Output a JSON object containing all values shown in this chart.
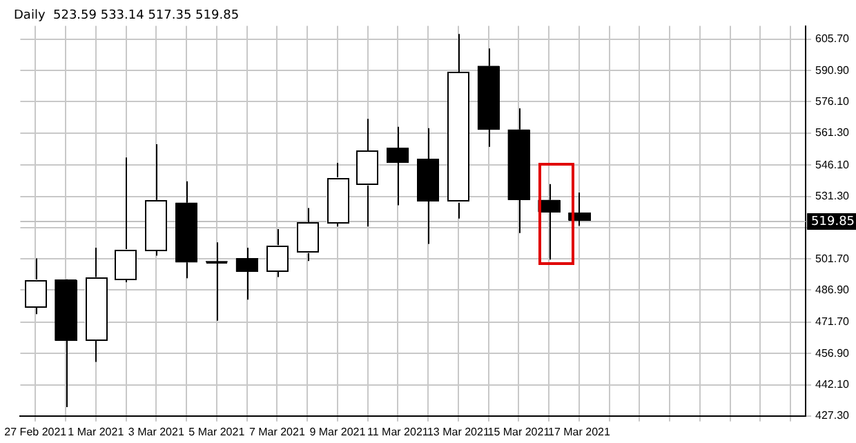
{
  "chart_data": {
    "type": "candlestick",
    "title": "Daily  523.59 533.14 517.35 519.85",
    "categories": [
      "27 Feb 2021",
      null,
      "1 Mar 2021",
      null,
      "3 Mar 2021",
      null,
      "5 Mar 2021",
      null,
      "7 Mar 2021",
      null,
      "9 Mar 2021",
      null,
      "11 Mar 2021",
      null,
      "13 Mar 2021",
      null,
      "15 Mar 2021",
      null,
      "17 Mar 2021",
      null,
      null,
      null,
      null,
      null,
      null,
      null
    ],
    "ohlc": [
      [
        478.7,
        501.9,
        475.5,
        491.9
      ],
      [
        491.9,
        492.0,
        431.5,
        462.9
      ],
      [
        462.9,
        507.0,
        452.9,
        493.1
      ],
      [
        491.9,
        549.7,
        490.6,
        506.3
      ],
      [
        505.7,
        556.0,
        503.2,
        529.6
      ],
      [
        528.3,
        538.4,
        492.5,
        500.0
      ],
      [
        500.0,
        509.5,
        472.4,
        500.0
      ],
      [
        501.9,
        507.0,
        482.4,
        495.6
      ],
      [
        495.6,
        515.8,
        493.1,
        508.2
      ],
      [
        504.4,
        525.8,
        500.7,
        518.9
      ],
      [
        518.9,
        547.2,
        517.0,
        540.3
      ],
      [
        536.5,
        568.0,
        517.0,
        552.9
      ],
      [
        554.1,
        564.2,
        527.1,
        547.2
      ],
      [
        549.1,
        563.6,
        508.8,
        529.0
      ],
      [
        528.3,
        608.2,
        520.8,
        590.0
      ],
      [
        593.1,
        601.3,
        554.8,
        562.9
      ],
      [
        562.9,
        573.0,
        513.9,
        529.6
      ],
      [
        529.6,
        537.1,
        501.3,
        523.9
      ],
      [
        523.59,
        533.14,
        517.35,
        519.85
      ],
      null,
      null,
      null,
      null,
      null,
      null,
      null
    ],
    "colors": [
      "#ffffff",
      "#000000",
      "#ffffff",
      "#ffffff",
      "#ffffff",
      "#000000",
      "#000000",
      "#000000",
      "#ffffff",
      "#ffffff",
      "#ffffff",
      "#ffffff",
      "#000000",
      "#000000",
      "#ffffff",
      "#000000",
      "#000000",
      "#000000",
      "#000000",
      null,
      null,
      null,
      null,
      null,
      null,
      null
    ],
    "ylim": [
      427.3,
      612.0
    ],
    "yticks": [
      {
        "value": 427.3,
        "label": "427.30"
      },
      {
        "value": 442.1,
        "label": "442.10"
      },
      {
        "value": 456.9,
        "label": "456.90"
      },
      {
        "value": 471.7,
        "label": "471.70"
      },
      {
        "value": 486.9,
        "label": "486.90"
      },
      {
        "value": 501.7,
        "label": "501.70"
      },
      {
        "value": 516.5,
        "label": null
      },
      {
        "value": 531.3,
        "label": "531.30"
      },
      {
        "value": 546.1,
        "label": "546.10"
      },
      {
        "value": 561.3,
        "label": "561.30"
      },
      {
        "value": 576.1,
        "label": "576.10"
      },
      {
        "value": 590.9,
        "label": "590.90"
      },
      {
        "value": 605.7,
        "label": "605.70"
      }
    ],
    "ref_lines": [
      {
        "axis": "y",
        "value": 519.85,
        "label": "519.85",
        "color": "#c0c0c0"
      }
    ],
    "grid": true,
    "legend": false
  }
}
